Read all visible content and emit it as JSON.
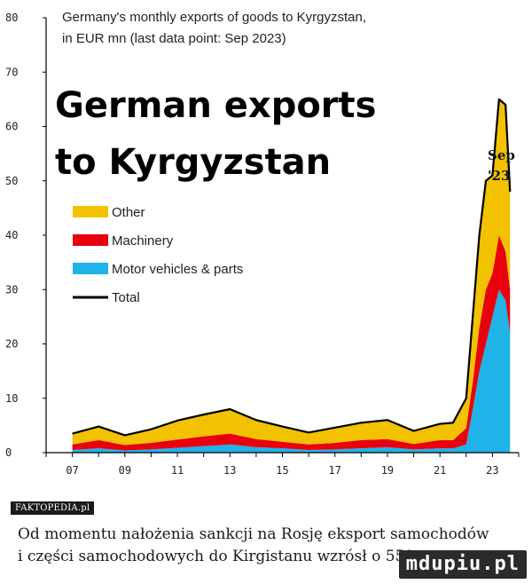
{
  "chart_data": {
    "type": "area",
    "subtitle_lines": [
      "Germany's monthly exports of goods to Kyrgyzstan,",
      "in EUR mn (last data point: Sep 2023)"
    ],
    "title_lines": [
      "German exports",
      "to Kyrgyzstan"
    ],
    "annotation_lines": [
      "Sep",
      "'23"
    ],
    "yticks": [
      "0",
      "10",
      "20",
      "30",
      "40",
      "50",
      "60",
      "70",
      "80"
    ],
    "xticks": [
      "07",
      "09",
      "11",
      "13",
      "15",
      "17",
      "19",
      "21",
      "23"
    ],
    "ylim": [
      0,
      80
    ],
    "xlim": [
      2006,
      2024
    ],
    "legend_position": "top-left",
    "legend": [
      {
        "name": "Other",
        "color": "#f2c200",
        "kind": "box"
      },
      {
        "name": "Machinery",
        "color": "#e8000d",
        "kind": "box"
      },
      {
        "name": "Motor vehicles & parts",
        "color": "#1fb3e8",
        "kind": "box"
      },
      {
        "name": "Total",
        "color": "#000000",
        "kind": "line"
      }
    ],
    "series": [
      {
        "name": "Motor vehicles & parts",
        "color": "#1fb3e8",
        "x": [
          2007.0,
          2008.0,
          2009.0,
          2010.0,
          2011.0,
          2012.0,
          2013.0,
          2014.0,
          2015.0,
          2016.0,
          2017.0,
          2018.0,
          2019.0,
          2020.0,
          2021.0,
          2021.5,
          2022.0,
          2022.25,
          2022.5,
          2022.75,
          2023.0,
          2023.25,
          2023.5,
          2023.67
        ],
        "values": [
          0.5,
          0.8,
          0.4,
          0.6,
          0.9,
          1.2,
          1.5,
          1.0,
          0.8,
          0.5,
          0.6,
          0.8,
          1.0,
          0.6,
          0.8,
          0.8,
          1.5,
          8.0,
          15.0,
          20.0,
          25.0,
          30.0,
          28.0,
          22.0
        ]
      },
      {
        "name": "Machinery",
        "color": "#e8000d",
        "x": [
          2007.0,
          2008.0,
          2009.0,
          2010.0,
          2011.0,
          2012.0,
          2013.0,
          2014.0,
          2015.0,
          2016.0,
          2017.0,
          2018.0,
          2019.0,
          2020.0,
          2021.0,
          2021.5,
          2022.0,
          2022.25,
          2022.5,
          2022.75,
          2023.0,
          2023.25,
          2023.5,
          2023.67
        ],
        "values": [
          1.0,
          1.5,
          1.0,
          1.2,
          1.5,
          1.8,
          2.0,
          1.5,
          1.2,
          1.0,
          1.2,
          1.5,
          1.5,
          1.0,
          1.5,
          1.5,
          3.0,
          5.0,
          8.0,
          10.0,
          8.0,
          10.0,
          9.0,
          8.0
        ]
      },
      {
        "name": "Other",
        "color": "#f2c200",
        "x": [
          2007.0,
          2008.0,
          2009.0,
          2010.0,
          2011.0,
          2012.0,
          2013.0,
          2014.0,
          2015.0,
          2016.0,
          2017.0,
          2018.0,
          2019.0,
          2020.0,
          2021.0,
          2021.5,
          2022.0,
          2022.25,
          2022.5,
          2022.75,
          2023.0,
          2023.25,
          2023.5,
          2023.67
        ],
        "values": [
          2.0,
          2.5,
          1.8,
          2.5,
          3.5,
          4.0,
          4.5,
          3.5,
          2.8,
          2.2,
          2.8,
          3.2,
          3.5,
          2.4,
          3.0,
          3.2,
          5.5,
          12.0,
          17.0,
          20.0,
          18.0,
          25.0,
          27.0,
          18.0
        ]
      },
      {
        "name": "Total",
        "color": "#000000",
        "x": [
          2007.0,
          2008.0,
          2009.0,
          2010.0,
          2011.0,
          2012.0,
          2013.0,
          2014.0,
          2015.0,
          2016.0,
          2017.0,
          2018.0,
          2019.0,
          2020.0,
          2021.0,
          2021.5,
          2022.0,
          2022.25,
          2022.5,
          2022.75,
          2023.0,
          2023.25,
          2023.5,
          2023.67
        ],
        "values": [
          3.5,
          4.8,
          3.2,
          4.3,
          5.9,
          7.0,
          8.0,
          6.0,
          4.8,
          3.7,
          4.6,
          5.5,
          6.0,
          4.0,
          5.3,
          5.5,
          10.0,
          25.0,
          40.0,
          50.0,
          51.0,
          65.0,
          64.0,
          48.0
        ]
      }
    ]
  },
  "source_badge": "FAKTOPEDIA.pl",
  "caption": {
    "line1": "Od momentu nałożenia sankcji na Rosję eksport samochodów",
    "line2": "i części samochodowych do Kirgistanu wzrósł o 550"
  },
  "watermark": "mdupiu.pl"
}
